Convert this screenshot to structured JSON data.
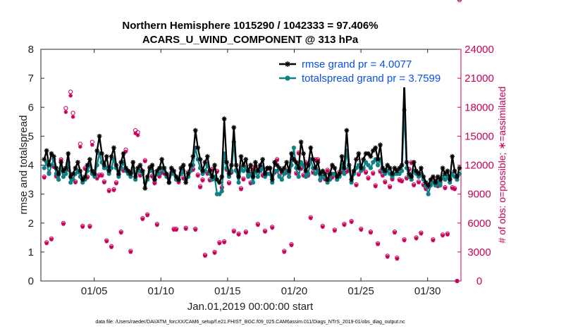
{
  "chart_data": {
    "type": "line",
    "title_line1": "Northern Hemisphere 1015290 / 1042333 = 97.406%",
    "title_line2": "ACARS_U_WIND_COMPONENT @ 313 hPa",
    "ylabel": "rmse and totalspread",
    "ylabel_right": "# of obs: o=possible; ∗=assimilated",
    "xlabel": "Jan.01,2019 00:00:00 start",
    "footer": "data file: /Users/raeder/DAI/ATM_forcXX/CAM6_setup/f.e21.FHIST_BGC.f09_025.CAM6assim.011/Diags_NTrS_2019-01/obs_diag_output.nc",
    "ylim": [
      0,
      8
    ],
    "y2lim": [
      0,
      24000
    ],
    "xlim": [
      1,
      32.5
    ],
    "yticks": [
      "0",
      "1",
      "2",
      "3",
      "4",
      "5",
      "6",
      "7",
      "8"
    ],
    "y2ticks": [
      "0",
      "3000",
      "6000",
      "9000",
      "12000",
      "15000",
      "18000",
      "21000",
      "24000"
    ],
    "xtick_values": [
      5,
      10,
      15,
      20,
      25,
      30
    ],
    "xtick_labels": [
      "01/05",
      "01/10",
      "01/15",
      "01/20",
      "01/25",
      "01/30"
    ],
    "legend": [
      "rmse grand pr = 4.0077",
      "totalspread grand pr = 3.7599"
    ],
    "colors": {
      "rmse": "#000000",
      "spread": "#0e8286",
      "obs": "#c8005a"
    },
    "rmse": [
      4.2,
      4.5,
      4.0,
      4.4,
      4.3,
      3.9,
      3.7,
      4.1,
      3.8,
      3.9,
      4.4,
      3.6,
      3.7,
      3.9,
      4.1,
      3.8,
      3.5,
      3.6,
      4.0,
      4.2,
      3.8,
      3.7,
      4.5,
      5.0,
      4.4,
      4.0,
      4.3,
      3.8,
      4.3,
      4.6,
      4.0,
      3.7,
      4.1,
      4.4,
      3.9,
      3.8,
      3.7,
      4.1,
      3.6,
      3.9,
      4.0,
      3.8,
      3.2,
      3.6,
      3.9,
      4.0,
      3.5,
      3.8,
      3.9,
      4.2,
      3.9,
      3.7,
      3.4,
      3.9,
      3.8,
      3.6,
      3.5,
      3.9,
      4.0,
      3.4,
      3.7,
      4.0,
      4.3,
      5.2,
      4.6,
      4.2,
      3.8,
      4.1,
      4.3,
      3.8,
      3.6,
      4.0,
      3.5,
      3.4,
      3.6,
      5.6,
      4.1,
      3.7,
      4.0,
      5.3,
      4.0,
      3.6,
      4.3,
      4.0,
      4.2,
      3.8,
      4.0,
      3.6,
      4.1,
      3.8,
      4.0,
      4.2,
      3.7,
      3.9,
      3.9,
      3.5,
      4.1,
      4.0,
      3.9,
      3.8,
      3.9,
      4.1,
      3.8,
      4.4,
      4.2,
      4.1,
      3.9,
      4.8,
      4.4,
      3.8,
      4.0,
      4.6,
      4.2,
      3.9,
      4.1,
      3.7,
      3.8,
      3.7,
      3.5,
      3.7,
      4.0,
      3.9,
      3.6,
      3.7,
      4.3,
      3.9,
      5.2,
      4.0,
      3.5,
      3.8,
      4.2,
      4.4,
      3.9,
      4.2,
      4.4,
      4.4,
      4.3,
      4.5,
      4.6,
      4.2,
      4.7,
      3.9,
      3.8,
      4.0,
      3.9,
      3.7,
      3.9,
      3.8,
      3.9,
      4.0,
      6.9,
      4.1,
      3.7,
      3.6,
      4.1,
      3.8,
      3.7,
      3.9,
      3.6,
      3.4,
      3.3,
      3.5,
      3.6,
      3.4,
      3.6,
      3.5,
      3.9,
      3.7,
      3.8,
      3.5,
      4.3,
      3.8,
      3.6,
      3.9
    ],
    "spread": [
      3.9,
      4.1,
      3.7,
      4.0,
      4.2,
      3.7,
      3.5,
      3.9,
      3.6,
      3.7,
      4.1,
      3.4,
      3.5,
      3.7,
      3.8,
      3.6,
      3.4,
      3.5,
      3.8,
      4.0,
      3.7,
      3.6,
      4.0,
      4.4,
      4.1,
      3.9,
      3.9,
      3.7,
      3.9,
      4.2,
      3.9,
      3.6,
      3.9,
      4.1,
      3.8,
      3.7,
      3.6,
      3.9,
      3.5,
      3.8,
      3.8,
      3.7,
      3.4,
      3.5,
      3.8,
      3.8,
      3.5,
      3.7,
      3.7,
      3.9,
      3.8,
      3.6,
      3.4,
      3.7,
      3.7,
      3.5,
      3.5,
      3.7,
      3.8,
      3.5,
      3.6,
      3.8,
      4.0,
      4.6,
      4.2,
      3.9,
      3.7,
      3.8,
      4.0,
      3.7,
      3.5,
      3.6,
      3.0,
      3.0,
      3.1,
      4.4,
      3.9,
      3.6,
      3.8,
      4.8,
      3.8,
      3.4,
      3.9,
      3.8,
      3.9,
      3.6,
      3.7,
      3.4,
      3.8,
      3.6,
      3.8,
      3.9,
      3.6,
      3.7,
      3.7,
      3.4,
      3.8,
      3.8,
      3.6,
      3.5,
      3.7,
      3.8,
      3.6,
      4.0,
      4.6,
      3.9,
      3.6,
      4.1,
      4.0,
      3.6,
      3.7,
      4.2,
      3.9,
      3.7,
      3.8,
      3.5,
      3.6,
      3.6,
      3.4,
      3.5,
      3.7,
      3.7,
      3.5,
      3.6,
      4.0,
      3.7,
      4.5,
      3.9,
      3.4,
      3.7,
      3.9,
      4.0,
      3.8,
      3.9,
      4.1,
      4.0,
      3.9,
      4.1,
      4.2,
      4.0,
      4.2,
      3.8,
      3.7,
      3.8,
      3.7,
      3.6,
      3.7,
      3.7,
      3.7,
      3.8,
      5.9,
      3.9,
      3.6,
      3.5,
      3.8,
      3.7,
      3.6,
      3.7,
      3.5,
      3.3,
      3.0,
      3.3,
      3.4,
      3.3,
      3.4,
      3.3,
      3.6,
      3.5,
      3.6,
      3.4,
      3.7,
      3.6,
      3.5,
      3.7
    ],
    "obs_possible": [
      10800,
      4000,
      11200,
      4400,
      11900,
      10900,
      11100,
      12600,
      6000,
      17900,
      11600,
      19600,
      17400,
      10300,
      11400,
      14200,
      5700,
      11700,
      10800,
      5700,
      14400,
      11000,
      10700,
      11000,
      11000,
      10300,
      4200,
      9400,
      3600,
      9500,
      10200,
      11000,
      5100,
      11500,
      13600,
      11400,
      3100,
      11400,
      15600,
      15400,
      11000,
      6500,
      12500,
      6900,
      11800,
      10900,
      10200,
      5900,
      10900,
      11300,
      11200,
      10900,
      10800,
      11200,
      5400,
      5400,
      10300,
      11200,
      10700,
      5500,
      11300,
      12000,
      11600,
      5400,
      11000,
      9800,
      10500,
      2700,
      11200,
      10500,
      11600,
      3000,
      11400,
      4000,
      9700,
      4100,
      11600,
      10200,
      11300,
      5200,
      11500,
      4900,
      9600,
      10600,
      5100,
      11000,
      10200,
      11700,
      11900,
      5900,
      11800,
      11000,
      5200,
      11700,
      11700,
      5600,
      11300,
      12600,
      10900,
      11300,
      3100,
      11300,
      11200,
      3800,
      12600,
      11200,
      13300,
      11700,
      11000,
      12300,
      11000,
      6600,
      11300,
      12600,
      12600,
      10500,
      5700,
      10600,
      11500,
      11000,
      10800,
      5300,
      10800,
      11300,
      11400,
      5900,
      11400,
      11500,
      6200,
      11200,
      10000,
      11100,
      5400,
      11700,
      11300,
      10700,
      5100,
      11200,
      9900,
      3900,
      11400,
      11000,
      10300,
      2600,
      9800,
      10600,
      5100,
      2400,
      10500,
      10400,
      4300,
      10700,
      11600,
      12300,
      10000,
      4500,
      10300,
      5000,
      10000,
      9600,
      9800,
      10100,
      4300,
      10500,
      9900,
      10200,
      4800,
      9700,
      4900,
      10600,
      9700,
      9600,
      0
    ],
    "obs_assimilated": [
      10700,
      3900,
      11100,
      4300,
      11800,
      10800,
      11000,
      12500,
      5900,
      17500,
      11500,
      19200,
      17000,
      10200,
      11300,
      13900,
      5600,
      11600,
      10700,
      5600,
      14100,
      10900,
      10600,
      10900,
      10900,
      10200,
      4100,
      9300,
      3500,
      9400,
      10100,
      10900,
      5000,
      11400,
      13400,
      11300,
      3000,
      11300,
      15300,
      15100,
      10900,
      6400,
      12400,
      6800,
      11700,
      10800,
      10100,
      5800,
      10800,
      11200,
      11100,
      10800,
      10700,
      11100,
      5300,
      5300,
      10200,
      11100,
      10600,
      5400,
      11200,
      11900,
      11500,
      5300,
      10900,
      9700,
      10400,
      2600,
      11100,
      10400,
      11500,
      2900,
      11300,
      3900,
      9600,
      4000,
      11500,
      10100,
      11200,
      5100,
      11400,
      4800,
      9500,
      10500,
      5000,
      10900,
      10100,
      11600,
      11800,
      5800,
      11700,
      10900,
      5100,
      11600,
      11600,
      5500,
      11200,
      12500,
      10800,
      11200,
      3000,
      11200,
      11100,
      3700,
      12500,
      11100,
      13200,
      11600,
      10900,
      12200,
      10900,
      6500,
      11200,
      12500,
      12500,
      10400,
      5600,
      10500,
      11400,
      10900,
      10700,
      5200,
      10700,
      11200,
      11300,
      5800,
      11300,
      11400,
      6100,
      11100,
      9900,
      11000,
      5300,
      11600,
      11200,
      10600,
      5000,
      11100,
      9800,
      3800,
      11300,
      10900,
      10200,
      2500,
      9700,
      10500,
      5000,
      2300,
      10400,
      10300,
      4200,
      10600,
      11500,
      12200,
      9900,
      4400,
      10200,
      4900,
      9900,
      9500,
      9700,
      10000,
      4200,
      10400,
      9800,
      10100,
      4700,
      9600,
      4800,
      10500,
      9600,
      9500,
      0
    ]
  }
}
